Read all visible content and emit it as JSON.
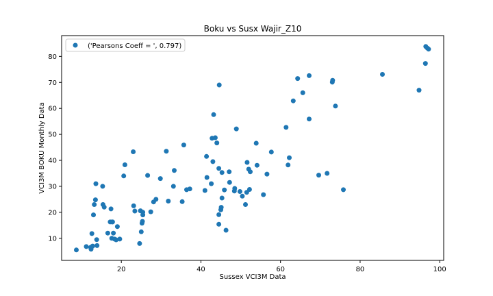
{
  "chart_data": {
    "type": "scatter",
    "title": "Boku vs Susx Wajir_Z10",
    "xlabel": "Sussex VCI3M Data",
    "ylabel": "VCI3M BOKU Monthly Data",
    "xlim": [
      5,
      101
    ],
    "ylim": [
      1.5,
      88
    ],
    "xticks": [
      20,
      40,
      60,
      80,
      100
    ],
    "yticks": [
      10,
      20,
      30,
      40,
      50,
      60,
      70,
      80
    ],
    "grid": false,
    "legend_position": "top-left",
    "series": [
      {
        "name": "('Pearsons Coeff = ', 0.797)",
        "color": "#1f77b4",
        "points": [
          [
            8.7,
            5.5
          ],
          [
            11.2,
            6.8
          ],
          [
            12.3,
            6.5
          ],
          [
            12.4,
            5.8
          ],
          [
            12.6,
            11.8
          ],
          [
            12.8,
            7.0
          ],
          [
            13.0,
            19.0
          ],
          [
            13.2,
            23.0
          ],
          [
            13.5,
            24.8
          ],
          [
            13.6,
            31.0
          ],
          [
            13.8,
            9.5
          ],
          [
            13.9,
            7.2
          ],
          [
            15.3,
            30.0
          ],
          [
            15.4,
            23.0
          ],
          [
            15.7,
            22.0
          ],
          [
            16.6,
            12.0
          ],
          [
            17.2,
            16.3
          ],
          [
            17.4,
            21.3
          ],
          [
            17.6,
            10.0
          ],
          [
            17.7,
            16.3
          ],
          [
            17.8,
            16.3
          ],
          [
            18.0,
            12.0
          ],
          [
            18.3,
            9.7
          ],
          [
            18.7,
            9.4
          ],
          [
            19.0,
            14.5
          ],
          [
            19.6,
            9.7
          ],
          [
            20.6,
            34.0
          ],
          [
            20.9,
            38.3
          ],
          [
            23.0,
            43.3
          ],
          [
            23.1,
            22.5
          ],
          [
            23.4,
            20.5
          ],
          [
            24.6,
            8.0
          ],
          [
            24.8,
            20.6
          ],
          [
            25.0,
            12.5
          ],
          [
            25.2,
            15.8
          ],
          [
            25.3,
            16.5
          ],
          [
            25.4,
            19.0
          ],
          [
            25.4,
            20.0
          ],
          [
            26.6,
            34.2
          ],
          [
            27.4,
            20.2
          ],
          [
            28.1,
            24.0
          ],
          [
            28.7,
            25.0
          ],
          [
            29.8,
            33.0
          ],
          [
            31.3,
            43.5
          ],
          [
            31.8,
            24.3
          ],
          [
            33.1,
            30.0
          ],
          [
            33.3,
            36.1
          ],
          [
            35.3,
            24.1
          ],
          [
            35.7,
            45.9
          ],
          [
            36.4,
            28.7
          ],
          [
            37.2,
            29.0
          ],
          [
            41.0,
            28.4
          ],
          [
            41.4,
            41.5
          ],
          [
            41.5,
            33.4
          ],
          [
            42.6,
            31.0
          ],
          [
            42.8,
            48.5
          ],
          [
            43.0,
            39.5
          ],
          [
            43.2,
            57.6
          ],
          [
            43.6,
            48.7
          ],
          [
            44.0,
            46.7
          ],
          [
            44.5,
            15.4
          ],
          [
            44.5,
            19.1
          ],
          [
            44.5,
            36.9
          ],
          [
            44.6,
            69.0
          ],
          [
            45.0,
            21.0
          ],
          [
            45.1,
            21.9
          ],
          [
            45.3,
            25.5
          ],
          [
            45.3,
            35.3
          ],
          [
            45.9,
            28.6
          ],
          [
            46.3,
            13.1
          ],
          [
            47.1,
            35.6
          ],
          [
            47.2,
            31.5
          ],
          [
            48.4,
            28.2
          ],
          [
            48.5,
            29.2
          ],
          [
            48.9,
            52.1
          ],
          [
            49.8,
            28.0
          ],
          [
            50.4,
            26.2
          ],
          [
            51.2,
            23.0
          ],
          [
            51.5,
            27.7
          ],
          [
            51.6,
            39.2
          ],
          [
            52.0,
            36.6
          ],
          [
            52.2,
            28.8
          ],
          [
            52.4,
            35.6
          ],
          [
            53.9,
            46.6
          ],
          [
            54.1,
            38.1
          ],
          [
            55.7,
            26.8
          ],
          [
            56.6,
            34.7
          ],
          [
            57.7,
            43.2
          ],
          [
            61.4,
            52.7
          ],
          [
            61.9,
            38.2
          ],
          [
            62.2,
            41.0
          ],
          [
            63.2,
            62.9
          ],
          [
            64.3,
            71.5
          ],
          [
            65.6,
            66.0
          ],
          [
            67.2,
            72.6
          ],
          [
            67.2,
            55.9
          ],
          [
            69.6,
            34.3
          ],
          [
            71.7,
            35.0
          ],
          [
            73.0,
            70.1
          ],
          [
            73.1,
            70.8
          ],
          [
            73.8,
            60.9
          ],
          [
            75.8,
            28.7
          ],
          [
            85.6,
            73.1
          ],
          [
            94.8,
            67.0
          ],
          [
            96.4,
            77.3
          ],
          [
            96.5,
            83.8
          ],
          [
            96.9,
            83.2
          ],
          [
            97.2,
            82.8
          ]
        ]
      }
    ]
  }
}
